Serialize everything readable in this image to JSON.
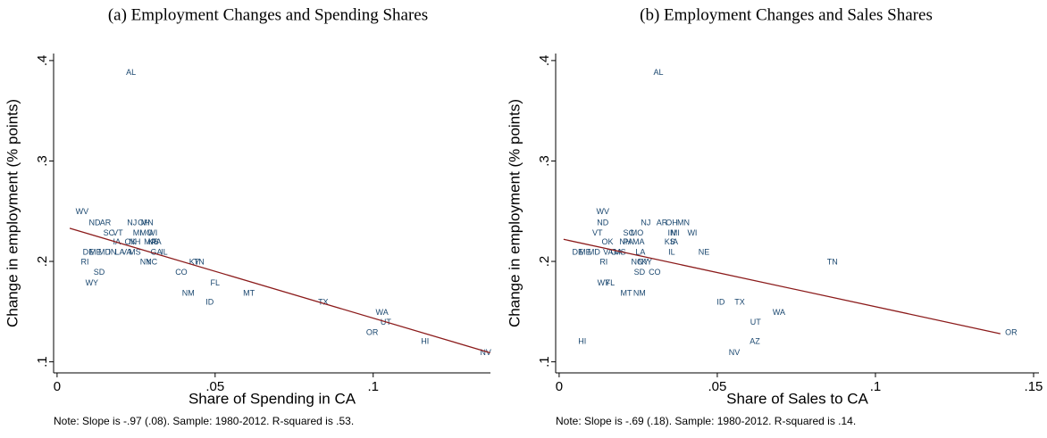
{
  "chart_data": [
    {
      "type": "scatter",
      "title": "(a) Employment Changes and Spending Shares",
      "x_label": "Share of Spending in CA",
      "y_label": "Change in employment (% points)",
      "note": "Note: Slope is -.97 (.08). Sample: 1980-2012. R-squared is .53.",
      "xlim": [
        -0.0011,
        0.1371
      ],
      "ylim": [
        0.089,
        0.407
      ],
      "xticks": [
        0,
        {
          "value": 0.05,
          "label": ".05"
        },
        {
          "value": 0.1,
          "label": ".1"
        }
      ],
      "yticks": [
        {
          "value": 0.1,
          "label": ".1"
        },
        {
          "value": 0.2,
          "label": ".2"
        },
        {
          "value": 0.3,
          "label": ".3"
        },
        {
          "value": 0.4,
          "label": ".4"
        }
      ],
      "series": [
        {
          "color": "#1a476f",
          "labels": [
            "AL",
            "WV",
            "ND",
            "AR",
            "SC",
            "VT",
            "NJ",
            "OH",
            "MN",
            "MI",
            "MO",
            "WI",
            "IA",
            "OK",
            "NH",
            "MA",
            "KS",
            "PA",
            "DE",
            "ME",
            "MD",
            "IN",
            "LA",
            "VA",
            "MS",
            "GA",
            "IL",
            "RI",
            "NY",
            "NC",
            "KY",
            "TN",
            "SD",
            "CO",
            "WY",
            "FL",
            "NM",
            "MT",
            "ID",
            "TX",
            "WA",
            "UT",
            "OR",
            "HI",
            "NV"
          ],
          "x": [
            0.0234,
            0.0079,
            0.0119,
            0.0153,
            0.0164,
            0.0192,
            0.0237,
            0.0274,
            0.0285,
            0.0254,
            0.0282,
            0.0302,
            0.0189,
            0.0232,
            0.0246,
            0.0294,
            0.0305,
            0.0314,
            0.0099,
            0.0121,
            0.015,
            0.0175,
            0.0198,
            0.022,
            0.0246,
            0.0314,
            0.0339,
            0.0088,
            0.028,
            0.0299,
            0.0435,
            0.0449,
            0.0133,
            0.0393,
            0.011,
            0.05,
            0.0415,
            0.0607,
            0.0483,
            0.0842,
            0.1028,
            0.104,
            0.0997,
            0.1164,
            0.1356
          ],
          "y": [
            0.388,
            0.249,
            0.238,
            0.238,
            0.228,
            0.228,
            0.238,
            0.238,
            0.238,
            0.228,
            0.228,
            0.228,
            0.219,
            0.219,
            0.219,
            0.219,
            0.219,
            0.219,
            0.209,
            0.209,
            0.209,
            0.209,
            0.209,
            0.209,
            0.209,
            0.209,
            0.209,
            0.199,
            0.199,
            0.199,
            0.199,
            0.199,
            0.189,
            0.189,
            0.178,
            0.178,
            0.168,
            0.168,
            0.159,
            0.159,
            0.149,
            0.139,
            0.129,
            0.12,
            0.109
          ]
        }
      ],
      "fit": {
        "color": "#8b1a1a",
        "x": [
          0.004,
          0.137
        ],
        "y": [
          0.233,
          0.109
        ]
      }
    },
    {
      "type": "scatter",
      "title": "(b) Employment Changes and Sales Shares",
      "x_label": "Share of Sales to CA",
      "y_label": "Change in employment (% points)",
      "note": "Note: Slope is -.69 (.18). Sample: 1980-2012. R-squared is .14.",
      "xlim": [
        -0.0011,
        0.1517
      ],
      "ylim": [
        0.089,
        0.407
      ],
      "xticks": [
        0,
        {
          "value": 0.05,
          "label": ".05"
        },
        {
          "value": 0.1,
          "label": ".1"
        },
        {
          "value": 0.15,
          "label": ".15"
        }
      ],
      "yticks": [
        {
          "value": 0.1,
          "label": ".1"
        },
        {
          "value": 0.2,
          "label": ".2"
        },
        {
          "value": 0.3,
          "label": ".3"
        },
        {
          "value": 0.4,
          "label": ".4"
        }
      ],
      "series": [
        {
          "color": "#1a476f",
          "labels": [
            "AL",
            "WV",
            "ND",
            "NJ",
            "AR",
            "OH",
            "MN",
            "VT",
            "SC",
            "MO",
            "IN",
            "MI",
            "WI",
            "OK",
            "NH",
            "PA",
            "MA",
            "KS",
            "IA",
            "DE",
            "ME",
            "MD",
            "VA",
            "GA",
            "MS",
            "LA",
            "IL",
            "NE",
            "RI",
            "NC",
            "NY",
            "KY",
            "TN",
            "SD",
            "CO",
            "WY",
            "FL",
            "MT",
            "NM",
            "ID",
            "TX",
            "WA",
            "UT",
            "AZ",
            "NV",
            "HI",
            "OR"
          ],
          "x": [
            0.0314,
            0.0138,
            0.0138,
            0.0274,
            0.0325,
            0.0356,
            0.0393,
            0.0121,
            0.022,
            0.0246,
            0.0356,
            0.0367,
            0.0421,
            0.0153,
            0.0209,
            0.0218,
            0.0251,
            0.035,
            0.0364,
            0.0059,
            0.0082,
            0.011,
            0.0155,
            0.0181,
            0.0192,
            0.0257,
            0.0356,
            0.0458,
            0.0141,
            0.0246,
            0.0266,
            0.0277,
            0.0864,
            0.0254,
            0.0302,
            0.0141,
            0.0161,
            0.0212,
            0.0254,
            0.0511,
            0.0571,
            0.0695,
            0.0621,
            0.0619,
            0.0554,
            0.0073,
            0.1429
          ],
          "y": [
            0.388,
            0.249,
            0.238,
            0.238,
            0.238,
            0.238,
            0.238,
            0.228,
            0.228,
            0.228,
            0.228,
            0.228,
            0.228,
            0.219,
            0.219,
            0.219,
            0.219,
            0.219,
            0.219,
            0.209,
            0.209,
            0.209,
            0.209,
            0.209,
            0.209,
            0.209,
            0.209,
            0.209,
            0.199,
            0.199,
            0.199,
            0.199,
            0.199,
            0.189,
            0.189,
            0.178,
            0.178,
            0.168,
            0.168,
            0.159,
            0.159,
            0.149,
            0.139,
            0.12,
            0.109,
            0.12,
            0.129
          ]
        }
      ],
      "fit": {
        "color": "#8b1a1a",
        "x": [
          0.0014,
          0.1395
        ],
        "y": [
          0.222,
          0.128
        ]
      }
    }
  ]
}
